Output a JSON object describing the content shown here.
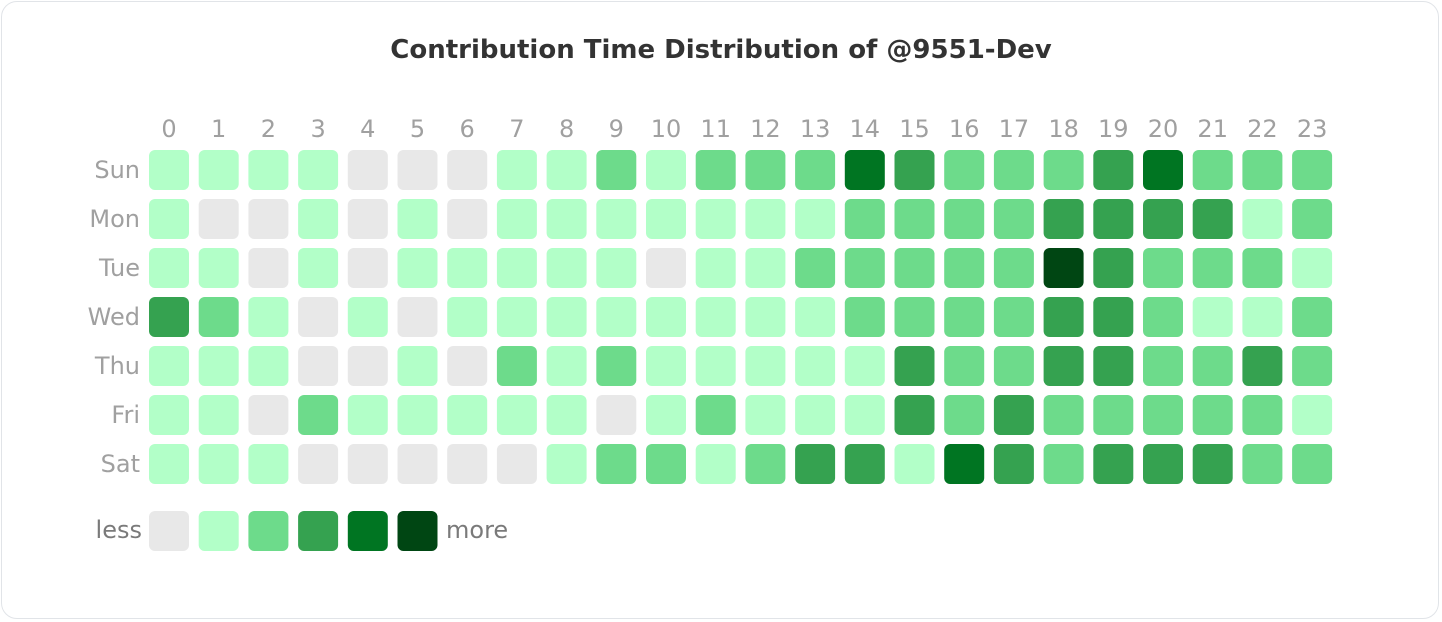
{
  "chart_data": {
    "type": "heatmap",
    "title": "Contribution Time Distribution of @9551-Dev",
    "x": [
      "0",
      "1",
      "2",
      "3",
      "4",
      "5",
      "6",
      "7",
      "8",
      "9",
      "10",
      "11",
      "12",
      "13",
      "14",
      "15",
      "16",
      "17",
      "18",
      "19",
      "20",
      "21",
      "22",
      "23"
    ],
    "y": [
      "Sun",
      "Mon",
      "Tue",
      "Wed",
      "Thu",
      "Fri",
      "Sat"
    ],
    "levels": [
      [
        1,
        1,
        1,
        1,
        0,
        0,
        0,
        1,
        1,
        2,
        1,
        2,
        2,
        2,
        4,
        3,
        2,
        2,
        2,
        3,
        4,
        2,
        2,
        2
      ],
      [
        1,
        0,
        0,
        1,
        0,
        1,
        0,
        1,
        1,
        1,
        1,
        1,
        1,
        1,
        2,
        2,
        2,
        2,
        3,
        3,
        3,
        3,
        1,
        2
      ],
      [
        1,
        1,
        0,
        1,
        0,
        1,
        1,
        1,
        1,
        1,
        0,
        1,
        1,
        2,
        2,
        2,
        2,
        2,
        5,
        3,
        2,
        2,
        2,
        1
      ],
      [
        3,
        2,
        1,
        0,
        1,
        0,
        1,
        1,
        1,
        1,
        1,
        1,
        1,
        1,
        2,
        2,
        2,
        2,
        3,
        3,
        2,
        1,
        1,
        2
      ],
      [
        1,
        1,
        1,
        0,
        0,
        1,
        0,
        2,
        1,
        2,
        1,
        1,
        1,
        1,
        1,
        3,
        2,
        2,
        3,
        3,
        2,
        2,
        3,
        2
      ],
      [
        1,
        1,
        0,
        2,
        1,
        1,
        1,
        1,
        1,
        0,
        1,
        2,
        1,
        1,
        1,
        3,
        2,
        3,
        2,
        2,
        2,
        2,
        2,
        1
      ],
      [
        1,
        1,
        1,
        0,
        0,
        0,
        0,
        0,
        1,
        2,
        2,
        1,
        2,
        3,
        3,
        1,
        4,
        3,
        2,
        3,
        3,
        3,
        2,
        2
      ]
    ],
    "legend": {
      "less_label": "less",
      "more_label": "more",
      "colors": [
        "#e8e8e8",
        "#b2ffc8",
        "#6ddb8b",
        "#35a250",
        "#007522",
        "#004613"
      ]
    }
  }
}
